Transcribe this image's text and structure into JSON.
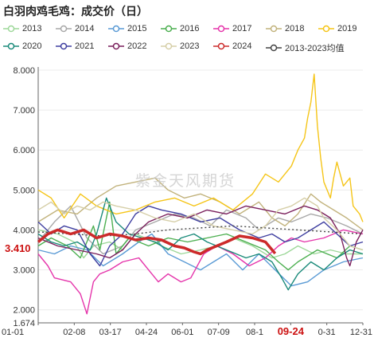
{
  "chart_data": {
    "type": "line",
    "title": "白羽肉鸡毛鸡：成交价（日）",
    "watermark": "紫金天风期货",
    "current_value_label": "3.410",
    "highlight_x_label": "09-24",
    "xlabels": [
      "01-01",
      "02-08",
      "03-17",
      "04-24",
      "06-01",
      "07-09",
      "08-1",
      "09-24",
      "0-31",
      "12-31"
    ],
    "yticks": [
      "1.674",
      "2.000",
      "3.000",
      "4.000",
      "5.000",
      "6.000",
      "7.000",
      "8.000"
    ],
    "ylim": [
      1.674,
      8.0
    ],
    "legend_position": "top",
    "series": [
      {
        "name": "2013",
        "color": "#9ed89a",
        "points": [
          [
            0,
            4.0
          ],
          [
            6,
            3.9
          ],
          [
            11,
            3.7
          ],
          [
            14,
            3.3
          ],
          [
            17,
            3.6
          ],
          [
            22,
            3.7
          ],
          [
            26,
            3.5
          ],
          [
            30,
            3.9
          ],
          [
            33,
            3.8
          ],
          [
            38,
            3.6
          ],
          [
            44,
            3.4
          ],
          [
            50,
            3.5
          ],
          [
            55,
            3.6
          ],
          [
            60,
            3.8
          ],
          [
            66,
            3.6
          ],
          [
            72,
            3.3
          ],
          [
            76,
            3.4
          ],
          [
            80,
            3.6
          ],
          [
            85,
            3.4
          ],
          [
            90,
            3.5
          ],
          [
            95,
            3.4
          ],
          [
            100,
            3.4
          ]
        ]
      },
      {
        "name": "2014",
        "color": "#a8a8a8",
        "points": [
          [
            0,
            3.7
          ],
          [
            5,
            4.2
          ],
          [
            10,
            4.6
          ],
          [
            15,
            3.8
          ],
          [
            20,
            3.4
          ],
          [
            26,
            3.6
          ],
          [
            30,
            4.0
          ],
          [
            36,
            4.2
          ],
          [
            42,
            4.4
          ],
          [
            48,
            4.3
          ],
          [
            53,
            4.1
          ],
          [
            58,
            4.5
          ],
          [
            64,
            4.3
          ],
          [
            68,
            4.0
          ],
          [
            74,
            4.3
          ],
          [
            78,
            4.2
          ],
          [
            84,
            4.4
          ],
          [
            89,
            4.3
          ],
          [
            95,
            4.1
          ],
          [
            100,
            3.9
          ]
        ]
      },
      {
        "name": "2015",
        "color": "#5b9bd5",
        "points": [
          [
            0,
            3.5
          ],
          [
            5,
            3.4
          ],
          [
            10,
            3.6
          ],
          [
            15,
            3.5
          ],
          [
            20,
            3.1
          ],
          [
            26,
            3.4
          ],
          [
            31,
            3.7
          ],
          [
            35,
            3.9
          ],
          [
            40,
            3.4
          ],
          [
            45,
            3.2
          ],
          [
            50,
            3.0
          ],
          [
            54,
            3.2
          ],
          [
            58,
            3.4
          ],
          [
            63,
            3.0
          ],
          [
            68,
            3.4
          ],
          [
            73,
            3.0
          ],
          [
            78,
            2.6
          ],
          [
            83,
            2.7
          ],
          [
            88,
            3.0
          ],
          [
            94,
            3.2
          ],
          [
            100,
            3.3
          ]
        ]
      },
      {
        "name": "2016",
        "color": "#4caf50",
        "points": [
          [
            0,
            3.6
          ],
          [
            4,
            3.8
          ],
          [
            9,
            3.6
          ],
          [
            13,
            3.3
          ],
          [
            17,
            4.1
          ],
          [
            19,
            3.5
          ],
          [
            22,
            4.7
          ],
          [
            24,
            3.4
          ],
          [
            28,
            3.8
          ],
          [
            34,
            3.6
          ],
          [
            40,
            3.8
          ],
          [
            46,
            3.7
          ],
          [
            52,
            3.8
          ],
          [
            58,
            3.9
          ],
          [
            64,
            3.7
          ],
          [
            70,
            3.5
          ],
          [
            74,
            3.2
          ],
          [
            77,
            3.0
          ],
          [
            80,
            3.2
          ],
          [
            86,
            3.5
          ],
          [
            92,
            3.3
          ],
          [
            96,
            3.6
          ],
          [
            100,
            3.5
          ]
        ]
      },
      {
        "name": "2017",
        "color": "#e535ab",
        "points": [
          [
            0,
            3.4
          ],
          [
            3,
            3.1
          ],
          [
            5,
            2.8
          ],
          [
            10,
            2.7
          ],
          [
            13,
            2.4
          ],
          [
            15,
            1.9
          ],
          [
            17,
            2.7
          ],
          [
            19,
            2.9
          ],
          [
            22,
            3.0
          ],
          [
            26,
            3.2
          ],
          [
            31,
            3.3
          ],
          [
            34,
            3.0
          ],
          [
            37,
            2.7
          ],
          [
            40,
            2.9
          ],
          [
            44,
            2.7
          ],
          [
            47,
            2.8
          ],
          [
            51,
            3.4
          ],
          [
            55,
            3.6
          ],
          [
            60,
            3.4
          ],
          [
            65,
            3.1
          ],
          [
            70,
            3.3
          ],
          [
            74,
            3.6
          ],
          [
            78,
            3.8
          ],
          [
            82,
            3.7
          ],
          [
            88,
            3.8
          ],
          [
            94,
            4.0
          ],
          [
            100,
            3.9
          ]
        ]
      },
      {
        "name": "2018",
        "color": "#c2b37d",
        "points": [
          [
            0,
            4.2
          ],
          [
            6,
            4.5
          ],
          [
            12,
            4.4
          ],
          [
            18,
            4.8
          ],
          [
            24,
            5.1
          ],
          [
            30,
            5.2
          ],
          [
            36,
            5.3
          ],
          [
            40,
            5.0
          ],
          [
            45,
            4.8
          ],
          [
            50,
            4.9
          ],
          [
            56,
            4.7
          ],
          [
            62,
            4.4
          ],
          [
            68,
            4.7
          ],
          [
            72,
            4.3
          ],
          [
            76,
            4.1
          ],
          [
            80,
            4.4
          ],
          [
            84,
            4.9
          ],
          [
            87,
            4.7
          ],
          [
            91,
            4.5
          ],
          [
            95,
            4.3
          ],
          [
            100,
            4.0
          ]
        ]
      },
      {
        "name": "2019",
        "color": "#f5c518",
        "points": [
          [
            0,
            5.0
          ],
          [
            4,
            4.8
          ],
          [
            8,
            4.3
          ],
          [
            13,
            4.9
          ],
          [
            18,
            4.6
          ],
          [
            24,
            4.4
          ],
          [
            30,
            4.5
          ],
          [
            36,
            4.7
          ],
          [
            42,
            4.8
          ],
          [
            48,
            4.6
          ],
          [
            54,
            4.8
          ],
          [
            60,
            4.5
          ],
          [
            66,
            4.9
          ],
          [
            70,
            5.4
          ],
          [
            74,
            5.2
          ],
          [
            78,
            5.6
          ],
          [
            80,
            6.0
          ],
          [
            82,
            6.3
          ],
          [
            83,
            6.8
          ],
          [
            84,
            7.2
          ],
          [
            85,
            7.9
          ],
          [
            86,
            6.6
          ],
          [
            87,
            5.8
          ],
          [
            88,
            5.2
          ],
          [
            90,
            4.8
          ],
          [
            91,
            5.3
          ],
          [
            92,
            5.7
          ],
          [
            94,
            5.1
          ],
          [
            96,
            5.3
          ],
          [
            97,
            4.6
          ],
          [
            99,
            4.4
          ],
          [
            100,
            4.2
          ]
        ]
      },
      {
        "name": "2020",
        "color": "#1a8a7a",
        "points": [
          [
            0,
            3.9
          ],
          [
            4,
            3.7
          ],
          [
            8,
            3.6
          ],
          [
            12,
            3.7
          ],
          [
            16,
            3.5
          ],
          [
            18,
            3.9
          ],
          [
            21,
            4.8
          ],
          [
            24,
            4.2
          ],
          [
            28,
            3.9
          ],
          [
            32,
            3.8
          ],
          [
            36,
            3.7
          ],
          [
            40,
            3.5
          ],
          [
            44,
            3.8
          ],
          [
            48,
            3.9
          ],
          [
            52,
            3.7
          ],
          [
            58,
            3.5
          ],
          [
            64,
            3.3
          ],
          [
            68,
            3.4
          ],
          [
            72,
            3.2
          ],
          [
            75,
            2.8
          ],
          [
            77,
            2.5
          ],
          [
            80,
            2.9
          ],
          [
            84,
            3.2
          ],
          [
            88,
            3.0
          ],
          [
            92,
            3.3
          ],
          [
            96,
            3.5
          ],
          [
            100,
            3.4
          ]
        ]
      },
      {
        "name": "2021",
        "color": "#3f3fa0",
        "points": [
          [
            0,
            4.2
          ],
          [
            4,
            3.9
          ],
          [
            8,
            4.1
          ],
          [
            12,
            4.0
          ],
          [
            16,
            3.4
          ],
          [
            19,
            3.1
          ],
          [
            22,
            3.6
          ],
          [
            26,
            3.9
          ],
          [
            30,
            4.4
          ],
          [
            34,
            4.6
          ],
          [
            38,
            4.5
          ],
          [
            44,
            4.4
          ],
          [
            50,
            4.2
          ],
          [
            56,
            4.3
          ],
          [
            62,
            4.0
          ],
          [
            68,
            3.8
          ],
          [
            72,
            3.9
          ],
          [
            76,
            3.7
          ],
          [
            80,
            3.8
          ],
          [
            84,
            4.0
          ],
          [
            88,
            4.2
          ],
          [
            92,
            3.9
          ],
          [
            96,
            3.6
          ],
          [
            100,
            3.7
          ]
        ]
      },
      {
        "name": "2022",
        "color": "#7a1f5c",
        "points": [
          [
            0,
            3.8
          ],
          [
            6,
            3.6
          ],
          [
            12,
            3.5
          ],
          [
            18,
            3.4
          ],
          [
            22,
            3.3
          ],
          [
            26,
            3.5
          ],
          [
            30,
            3.9
          ],
          [
            34,
            4.2
          ],
          [
            40,
            4.4
          ],
          [
            46,
            4.3
          ],
          [
            52,
            4.5
          ],
          [
            58,
            4.4
          ],
          [
            64,
            4.6
          ],
          [
            70,
            4.5
          ],
          [
            76,
            4.4
          ],
          [
            82,
            4.6
          ],
          [
            86,
            4.5
          ],
          [
            90,
            4.3
          ],
          [
            93,
            3.9
          ],
          [
            95,
            3.3
          ],
          [
            96,
            3.1
          ],
          [
            98,
            3.7
          ],
          [
            100,
            4.0
          ]
        ]
      },
      {
        "name": "2023",
        "color": "#d6cfa8",
        "points": [
          [
            0,
            4.5
          ],
          [
            4,
            4.7
          ],
          [
            8,
            4.4
          ],
          [
            12,
            4.6
          ],
          [
            16,
            4.5
          ],
          [
            20,
            4.7
          ],
          [
            24,
            4.6
          ],
          [
            30,
            4.5
          ],
          [
            36,
            4.3
          ],
          [
            42,
            4.2
          ],
          [
            48,
            4.4
          ],
          [
            54,
            4.1
          ],
          [
            60,
            4.0
          ],
          [
            66,
            3.9
          ],
          [
            70,
            4.1
          ],
          [
            74,
            4.5
          ],
          [
            78,
            4.6
          ],
          [
            82,
            4.8
          ],
          [
            86,
            4.6
          ],
          [
            88,
            4.3
          ],
          [
            92,
            4.0
          ],
          [
            94,
            3.8
          ],
          [
            96,
            3.6
          ],
          [
            100,
            3.5
          ]
        ]
      },
      {
        "name": "2024",
        "color": "#cc2a2a",
        "points": [
          [
            0,
            3.7
          ],
          [
            3,
            3.9
          ],
          [
            6,
            4.0
          ],
          [
            10,
            3.9
          ],
          [
            14,
            4.0
          ],
          [
            18,
            3.8
          ],
          [
            22,
            3.9
          ],
          [
            26,
            3.85
          ],
          [
            30,
            3.75
          ],
          [
            34,
            3.8
          ],
          [
            38,
            3.75
          ],
          [
            42,
            3.6
          ],
          [
            45,
            3.55
          ],
          [
            48,
            3.45
          ],
          [
            50,
            3.4
          ],
          [
            52,
            3.5
          ],
          [
            55,
            3.6
          ],
          [
            58,
            3.7
          ],
          [
            62,
            3.85
          ],
          [
            66,
            3.8
          ],
          [
            70,
            3.7
          ],
          [
            73,
            3.41
          ]
        ]
      },
      {
        "name": "2013-2023均值",
        "color": "#444444",
        "dashed": true,
        "points": [
          [
            0,
            3.95
          ],
          [
            10,
            3.9
          ],
          [
            20,
            3.85
          ],
          [
            30,
            3.9
          ],
          [
            40,
            4.0
          ],
          [
            50,
            4.05
          ],
          [
            60,
            4.1
          ],
          [
            70,
            4.05
          ],
          [
            80,
            4.0
          ],
          [
            90,
            3.95
          ],
          [
            100,
            3.9
          ]
        ]
      }
    ]
  }
}
